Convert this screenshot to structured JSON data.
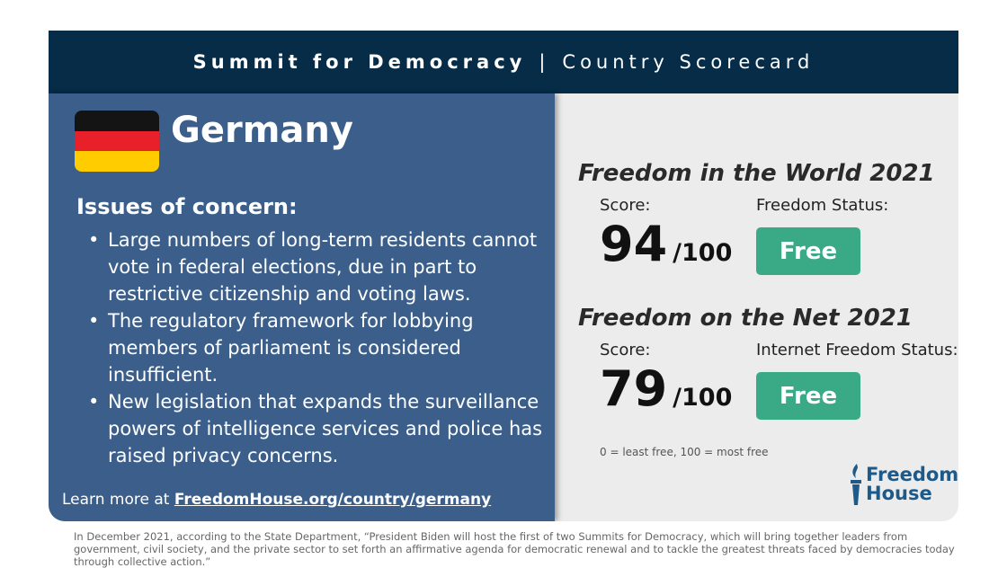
{
  "header": {
    "title": "Summit for Democracy",
    "separator": "|",
    "subtitle": "Country Scorecard"
  },
  "country": {
    "name": "Germany",
    "flag_colors": [
      "#141414",
      "#e8202a",
      "#ffcc00"
    ]
  },
  "issues": {
    "heading": "Issues of concern:",
    "items": [
      "Large numbers of long-term residents cannot vote in federal elections, due in part to restrictive citizenship and voting laws.",
      "The regulatory framework for lobbying members of parliament is considered insufficient.",
      "New legislation that expands the surveillance powers of intelligence services and police has raised privacy concerns."
    ]
  },
  "learn_more": {
    "prefix": "Learn more at ",
    "link": "FreedomHouse.org/country/germany"
  },
  "fiw": {
    "title": "Freedom in the World 2021",
    "score_label": "Score:",
    "score": "94",
    "max": "/100",
    "status_label": "Freedom Status:",
    "status": "Free"
  },
  "fotn": {
    "title": "Freedom on the Net 2021",
    "score_label": "Score:",
    "score": "79",
    "max": "/100",
    "status_label": "Internet Freedom Status:",
    "status": "Free"
  },
  "scale_note": "0 = least free, 100 = most free",
  "logo": {
    "line1": "Freedom",
    "line2": "House"
  },
  "footer": "In December 2021, according to the State Department, “President Biden will host the first of two Summits for Democracy, which will bring together leaders from government, civil society, and the private sector to set forth an affirmative agenda for democratic renewal and to tackle the greatest threats faced by democracies today through collective action.”",
  "colors": {
    "header": "#062c48",
    "panel": "#3b5f8a",
    "status_free": "#3aa985"
  }
}
